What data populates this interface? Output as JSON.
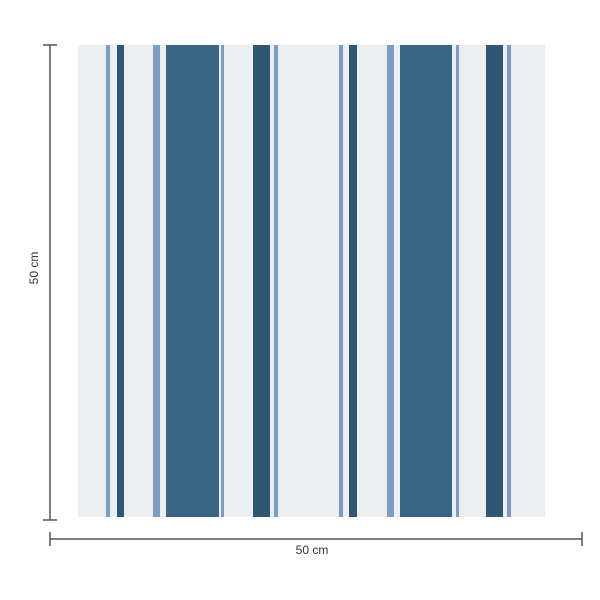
{
  "dimensions": {
    "height_label": "50 cm",
    "width_label": "50 cm"
  }
}
